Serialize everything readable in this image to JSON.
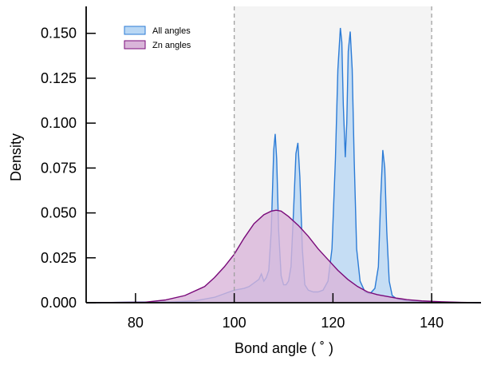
{
  "chart_data": {
    "type": "area",
    "title": "",
    "xlabel": "Bond angle ( ˚ )",
    "ylabel": "Density",
    "xlim": [
      70,
      150
    ],
    "ylim": [
      0,
      0.165
    ],
    "x_ticks": [
      80,
      100,
      120,
      140
    ],
    "x_tick_labels": [
      "80",
      "100",
      "120",
      "140"
    ],
    "y_ticks": [
      0.0,
      0.025,
      0.05,
      0.075,
      0.1,
      0.125,
      0.15
    ],
    "y_tick_labels": [
      "0.000",
      "0.025",
      "0.050",
      "0.075",
      "0.100",
      "0.125",
      "0.150"
    ],
    "grid": false,
    "legend_position": "top-left",
    "shaded_region": {
      "x_start": 100,
      "x_end": 140,
      "color": "#f4f4f4"
    },
    "reference_lines": [
      100,
      140
    ],
    "series": [
      {
        "name": "All angles",
        "stroke": "#2b7bd6",
        "fill": "#b9d7f4",
        "x": [
          70,
          88,
          92,
          96,
          98,
          100,
          102,
          103,
          104,
          105,
          105.5,
          106,
          106.5,
          107,
          107.5,
          108,
          108.3,
          108.6,
          109,
          109.5,
          110,
          110.5,
          111,
          111.5,
          112,
          112.5,
          112.9,
          113.3,
          113.8,
          114.3,
          115,
          116,
          117,
          118,
          119,
          119.8,
          120.5,
          121,
          121.5,
          121.8,
          122.1,
          122.5,
          122.8,
          123.1,
          123.5,
          123.9,
          124.3,
          124.8,
          125.5,
          126.5,
          127.5,
          128.5,
          129.2,
          129.7,
          130.1,
          130.5,
          130.9,
          131.4,
          132,
          133,
          135,
          140,
          150
        ],
        "y": [
          0,
          0.0005,
          0.001,
          0.003,
          0.005,
          0.007,
          0.008,
          0.009,
          0.011,
          0.013,
          0.016,
          0.012,
          0.014,
          0.018,
          0.04,
          0.085,
          0.094,
          0.08,
          0.04,
          0.015,
          0.01,
          0.01,
          0.012,
          0.02,
          0.05,
          0.083,
          0.089,
          0.07,
          0.03,
          0.01,
          0.007,
          0.006,
          0.006,
          0.007,
          0.012,
          0.03,
          0.08,
          0.13,
          0.153,
          0.145,
          0.11,
          0.081,
          0.1,
          0.14,
          0.151,
          0.13,
          0.08,
          0.03,
          0.012,
          0.006,
          0.005,
          0.008,
          0.02,
          0.06,
          0.085,
          0.075,
          0.04,
          0.012,
          0.004,
          0.002,
          0.001,
          0.0003,
          0
        ]
      },
      {
        "name": "Zn angles",
        "stroke": "#7a0a7a",
        "fill": "#d9b5d9",
        "x": [
          70,
          82,
          86,
          90,
          94,
          96,
          98,
          100,
          102,
          104,
          106,
          107.5,
          108.5,
          109.5,
          111,
          113,
          115,
          117,
          119,
          121,
          123,
          125,
          127,
          129,
          131,
          133,
          135,
          138,
          142,
          146,
          150
        ],
        "y": [
          0,
          0.0003,
          0.0015,
          0.004,
          0.009,
          0.014,
          0.02,
          0.027,
          0.036,
          0.044,
          0.049,
          0.051,
          0.0515,
          0.051,
          0.048,
          0.043,
          0.037,
          0.03,
          0.024,
          0.018,
          0.013,
          0.009,
          0.006,
          0.0045,
          0.0035,
          0.0025,
          0.0017,
          0.001,
          0.0005,
          0.0002,
          0
        ]
      }
    ]
  }
}
